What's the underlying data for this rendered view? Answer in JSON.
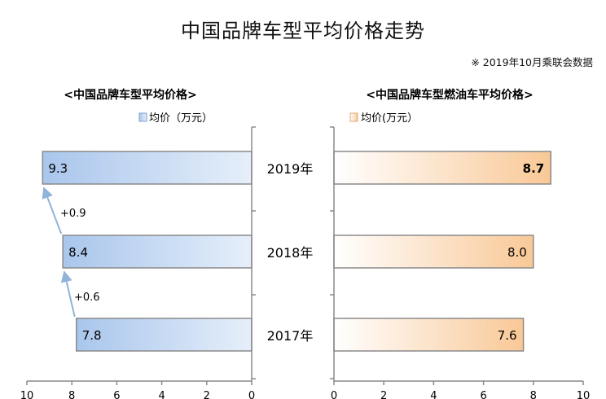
{
  "title": "中国品牌车型平均价格走势",
  "source": "※ 2019年10月乘联会数据",
  "chart_data": [
    {
      "type": "bar",
      "title": "<中国品牌车型平均价格>",
      "categories": [
        "2019年",
        "2018年",
        "2017年"
      ],
      "series": [
        {
          "name": "均价（万元）",
          "values": [
            9.3,
            8.4,
            7.8
          ]
        }
      ],
      "xlim": [
        10,
        0
      ],
      "xticks": [
        "10",
        "8",
        "6",
        "4",
        "2",
        "0"
      ],
      "annotations": [
        "+0.9",
        "+0.6"
      ],
      "color": "#bcd3ef",
      "bold_values": []
    },
    {
      "type": "bar",
      "title": "<中国品牌车型燃油车平均价格>",
      "categories": [
        "2019年",
        "2018年",
        "2017年"
      ],
      "series": [
        {
          "name": "均价(万元）",
          "values": [
            8.7,
            8.0,
            7.6
          ]
        }
      ],
      "xlim": [
        0,
        10
      ],
      "xticks": [
        "0",
        "2",
        "4",
        "6",
        "8",
        "10"
      ],
      "color": "#fbd3ae",
      "bold_values": [
        "8.7"
      ]
    }
  ]
}
